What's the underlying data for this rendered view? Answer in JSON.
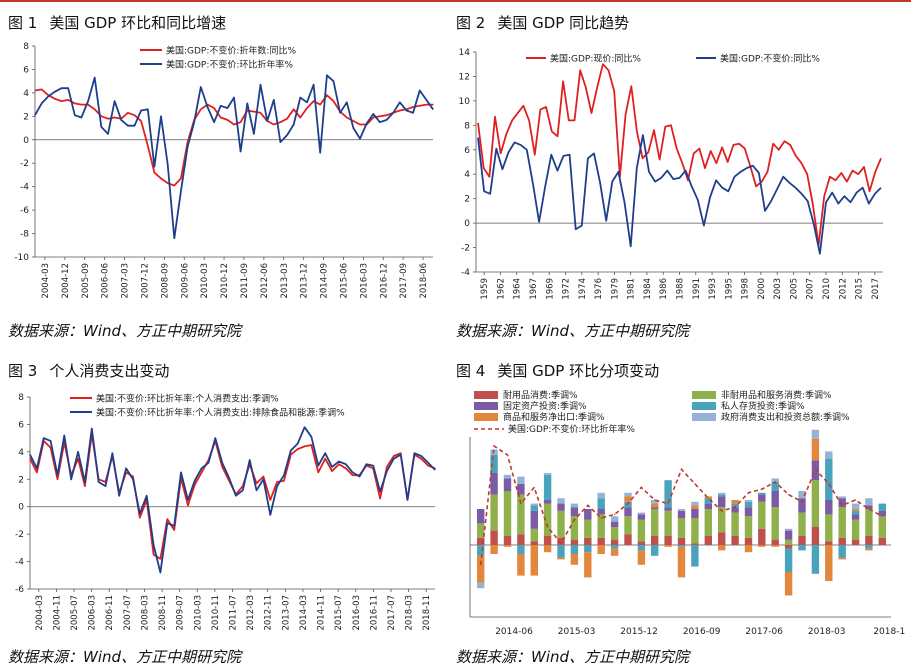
{
  "source_text": "数据来源：Wind、方正中期研究院",
  "charts": [
    {
      "fig_label": "图 1",
      "title": "美国 GDP 环比和同比增速",
      "chart_data": {
        "type": "line",
        "ylim": [
          -10,
          8
        ],
        "yticks": [
          -10,
          -8,
          -6,
          -4,
          -2,
          0,
          2,
          4,
          6,
          8
        ],
        "xlabels": [
          "2004-03",
          "2004-12",
          "2005-09",
          "2006-06",
          "2007-03",
          "2007-12",
          "2008-09",
          "2009-06",
          "2010-03",
          "2010-12",
          "2011-09",
          "2012-06",
          "2013-03",
          "2013-12",
          "2014-09",
          "2015-06",
          "2016-03",
          "2016-12",
          "2017-09",
          "2018-06"
        ],
        "grid": false,
        "legend_position": "top-center",
        "series": [
          {
            "name": "美国:GDP:不变价:折年数:同比%",
            "color": "#e02020",
            "values": [
              4.2,
              4.3,
              3.8,
              3.5,
              3.3,
              3.4,
              3.1,
              3.0,
              3.0,
              2.6,
              2.0,
              1.8,
              1.9,
              1.8,
              2.3,
              2.1,
              1.6,
              -0.5,
              -2.8,
              -3.3,
              -3.7,
              -3.9,
              -3.3,
              -0.2,
              1.7,
              2.6,
              3.0,
              2.7,
              1.9,
              1.7,
              1.3,
              1.5,
              2.5,
              2.4,
              2.3,
              1.6,
              1.3,
              1.5,
              1.8,
              2.6,
              1.9,
              2.7,
              3.3,
              3.0,
              3.8,
              3.3,
              2.4,
              1.9,
              1.6,
              1.3,
              1.3,
              1.9,
              2.0,
              2.1,
              2.3,
              2.5,
              2.6,
              2.8,
              2.9,
              3.0,
              3.0
            ]
          },
          {
            "name": "美国:GDP:不变价:环比折年率%",
            "color": "#1f3e8c",
            "values": [
              2.1,
              3.1,
              3.7,
              4.1,
              4.4,
              4.4,
              2.1,
              1.9,
              3.3,
              5.3,
              1.1,
              0.5,
              3.3,
              1.7,
              1.2,
              1.2,
              2.5,
              2.6,
              -2.3,
              2.0,
              -2.1,
              -8.4,
              -4.4,
              -0.6,
              1.5,
              4.5,
              2.8,
              1.5,
              2.9,
              2.7,
              3.6,
              -1.0,
              3.1,
              0.5,
              4.7,
              1.6,
              3.4,
              -0.2,
              0.4,
              1.3,
              3.6,
              3.2,
              4.7,
              -1.1,
              5.5,
              5.0,
              2.3,
              3.2,
              1.0,
              0.1,
              1.4,
              2.2,
              1.5,
              1.7,
              2.3,
              3.2,
              2.5,
              2.3,
              4.2,
              3.4,
              2.6
            ]
          }
        ]
      }
    },
    {
      "fig_label": "图 2",
      "title": "美国 GDP 同比趋势",
      "chart_data": {
        "type": "line",
        "ylim": [
          -4,
          14
        ],
        "yticks": [
          -4,
          -2,
          0,
          2,
          4,
          6,
          8,
          10,
          12,
          14
        ],
        "xlabels": [
          "1959",
          "1962",
          "1964",
          "1967",
          "1969",
          "1972",
          "1974",
          "1976",
          "1979",
          "1981",
          "1984",
          "1986",
          "1988",
          "1991",
          "1993",
          "1995",
          "1998",
          "2000",
          "2003",
          "2005",
          "2007",
          "2010",
          "2012",
          "2015",
          "2017"
        ],
        "grid": false,
        "legend_position": "top",
        "series": [
          {
            "name": "美国:GDP:现价:同比%",
            "color": "#e02020",
            "values": [
              8.2,
              4.5,
              3.8,
              8.7,
              5.7,
              7.3,
              8.4,
              9.0,
              9.6,
              8.4,
              5.6,
              9.3,
              9.5,
              7.5,
              7.1,
              11.6,
              8.4,
              8.4,
              12.5,
              11.1,
              9.0,
              11.1,
              13.0,
              12.5,
              10.8,
              3.8,
              8.9,
              11.2,
              7.5,
              5.3,
              5.8,
              7.6,
              5.2,
              7.9,
              8.0,
              6.1,
              4.9,
              3.5,
              5.7,
              6.1,
              4.5,
              5.9,
              4.9,
              6.2,
              5.0,
              6.4,
              6.5,
              6.1,
              4.6,
              3.0,
              3.4,
              4.2,
              6.5,
              6.0,
              6.7,
              6.4,
              5.5,
              4.9,
              4.0,
              1.5,
              -1.8,
              2.2,
              3.8,
              3.5,
              4.1,
              3.4,
              4.3,
              4.0,
              4.6,
              2.6,
              4.2,
              5.3
            ]
          },
          {
            "name": "美国:GDP:不变价:同比%",
            "color": "#1f3e8c",
            "values": [
              7.0,
              2.6,
              2.4,
              6.1,
              4.4,
              5.8,
              6.6,
              6.4,
              6.0,
              3.2,
              0.1,
              3.0,
              5.6,
              4.3,
              5.5,
              5.6,
              -0.5,
              -0.2,
              5.3,
              5.7,
              3.3,
              0.2,
              3.4,
              4.2,
              1.7,
              -1.9,
              4.5,
              7.2,
              4.2,
              3.4,
              3.7,
              4.3,
              3.6,
              3.7,
              4.3,
              3.0,
              1.9,
              -0.2,
              2.1,
              3.5,
              2.9,
              2.6,
              3.8,
              4.2,
              4.5,
              4.7,
              4.1,
              1.0,
              1.8,
              2.8,
              3.8,
              3.3,
              2.9,
              2.4,
              1.8,
              -0.1,
              -2.5,
              1.7,
              2.5,
              1.6,
              2.2,
              1.7,
              2.5,
              2.9,
              1.6,
              2.4,
              2.9
            ]
          }
        ]
      }
    },
    {
      "fig_label": "图 3",
      "title": "个人消费支出变动",
      "chart_data": {
        "type": "line",
        "ylim": [
          -6,
          8
        ],
        "yticks": [
          -6,
          -4,
          -2,
          0,
          2,
          4,
          6,
          8
        ],
        "xlabels": [
          "2004-03",
          "2004-11",
          "2005-07",
          "2006-03",
          "2006-11",
          "2007-07",
          "2008-03",
          "2008-11",
          "2009-07",
          "2010-03",
          "2010-11",
          "2011-07",
          "2012-03",
          "2012-11",
          "2013-07",
          "2014-03",
          "2014-11",
          "2015-07",
          "2016-03",
          "2016-11",
          "2017-07",
          "2018-03",
          "2018-11"
        ],
        "grid": false,
        "legend_position": "top",
        "series": [
          {
            "name": "美国:不变价:环比折年率:个人消费支出:季调%",
            "color": "#e02020",
            "values": [
              3.5,
              2.5,
              4.8,
              4.3,
              2.0,
              4.7,
              2.3,
              3.5,
              1.5,
              5.3,
              2.0,
              1.8,
              3.7,
              1.0,
              2.5,
              2.2,
              -0.8,
              0.5,
              -3.5,
              -3.8,
              -0.9,
              -1.7,
              2.1,
              0.1,
              1.6,
              2.5,
              3.4,
              4.8,
              2.9,
              1.9,
              0.9,
              1.5,
              3.1,
              1.7,
              2.2,
              0.5,
              1.8,
              1.9,
              3.8,
              4.2,
              4.4,
              4.5,
              2.5,
              3.5,
              2.6,
              3.1,
              2.8,
              2.3,
              2.3,
              3.0,
              2.8,
              0.6,
              2.9,
              3.7,
              3.9,
              0.5,
              3.8,
              3.5,
              3.0,
              2.8
            ]
          },
          {
            "name": "美国:不变价:环比折年率:个人消费支出:排除食品和能源:季调%",
            "color": "#1f3e8c",
            "values": [
              3.8,
              2.8,
              5.0,
              4.8,
              2.3,
              5.2,
              2.0,
              4.0,
              1.8,
              5.7,
              1.8,
              1.5,
              3.9,
              0.8,
              2.8,
              2.0,
              -0.5,
              0.8,
              -2.8,
              -4.8,
              -1.2,
              -1.4,
              2.5,
              0.5,
              1.9,
              2.8,
              3.2,
              5.0,
              3.2,
              2.1,
              0.8,
              1.2,
              3.4,
              1.2,
              2.0,
              -0.6,
              1.5,
              2.3,
              4.1,
              4.6,
              5.8,
              5.1,
              3.0,
              3.9,
              2.9,
              3.3,
              3.1,
              2.5,
              2.2,
              3.1,
              3.0,
              1.1,
              2.6,
              3.5,
              3.8,
              0.5,
              3.9,
              3.7,
              3.2,
              2.7
            ]
          }
        ]
      }
    },
    {
      "fig_label": "图 4",
      "title": "美国 GDP 环比分项变动",
      "chart_data": {
        "type": "bar",
        "stacked": true,
        "ylim": [
          -4,
          6
        ],
        "xlabels": [
          "2014-06",
          "2015-03",
          "2015-12",
          "2016-09",
          "2017-06",
          "2018-03",
          "2018-1"
        ],
        "grid": false,
        "legend_position": "top",
        "series": [
          {
            "name": "耐用品消费:季调%",
            "color": "#c0504d",
            "values": [
              0.4,
              0.8,
              0.5,
              0.6,
              0.2,
              0.5,
              0.4,
              0.3,
              0.4,
              0.4,
              0.3,
              0.6,
              0.2,
              0.5,
              0.5,
              0.4,
              0.1,
              0.5,
              0.7,
              0.5,
              0.4,
              0.9,
              0.3,
              -0.2,
              0.5,
              1.0,
              0.2,
              0.4,
              0.3,
              0.5,
              0.4
            ]
          },
          {
            "name": "非耐用品和服务消费:季调%",
            "color": "#8fb04b",
            "values": [
              0.8,
              2.0,
              2.5,
              2.2,
              0.7,
              1.8,
              1.5,
              1.3,
              1.0,
              1.3,
              0.7,
              1.0,
              1.2,
              1.5,
              1.4,
              1.1,
              1.4,
              1.5,
              1.4,
              1.3,
              1.2,
              1.5,
              1.8,
              0.3,
              1.3,
              2.6,
              1.5,
              1.7,
              1.1,
              1.5,
              1.2
            ]
          },
          {
            "name": "固定资产投资:季调%",
            "color": "#7b5ba6",
            "values": [
              0.8,
              1.2,
              0.7,
              0.6,
              1.0,
              0.2,
              0.4,
              0.5,
              0.6,
              0.3,
              0.3,
              0.5,
              0.3,
              0.1,
              0.2,
              0.4,
              0.5,
              0.3,
              0.6,
              0.3,
              0.5,
              0.4,
              0.9,
              0.5,
              0.8,
              1.1,
              0.8,
              0.5,
              0.3,
              0.2,
              0.3
            ]
          },
          {
            "name": "私人存货投资:季调%",
            "color": "#4aa3bd",
            "values": [
              -0.6,
              1.0,
              0.0,
              -0.5,
              0.3,
              1.4,
              -0.7,
              -0.5,
              -0.4,
              0.6,
              -0.2,
              0.3,
              -0.3,
              -0.6,
              1.5,
              -0.1,
              -1.2,
              0.3,
              0.1,
              0.2,
              0.3,
              0.1,
              0.5,
              -1.3,
              -0.3,
              -1.6,
              2.3,
              -0.7,
              0.2,
              -0.2,
              0.4
            ]
          },
          {
            "name": "商品和服务净出口:季调%",
            "color": "#e2873b",
            "values": [
              -1.5,
              -0.5,
              -0.1,
              -1.2,
              -1.7,
              -0.4,
              -0.1,
              -0.6,
              -1.4,
              -0.5,
              -0.4,
              0.3,
              -0.8,
              0.2,
              -0.1,
              -1.7,
              0.2,
              0.1,
              -0.3,
              0.2,
              -0.4,
              -0.1,
              -0.1,
              -1.3,
              0.0,
              1.2,
              -2.0,
              -0.1,
              0.1,
              -0.1,
              0.0
            ]
          },
          {
            "name": "政府消费支出和投资总额:季调%",
            "color": "#95b3d7",
            "values": [
              -0.3,
              0.3,
              0.2,
              0.4,
              0.1,
              0.1,
              0.3,
              0.2,
              0.0,
              0.3,
              0.3,
              0.2,
              0.1,
              0.2,
              0.0,
              0.1,
              0.2,
              0.0,
              0.1,
              0.0,
              0.1,
              0.0,
              0.2,
              0.1,
              0.4,
              0.5,
              0.4,
              0.1,
              0.3,
              0.4,
              0.0
            ]
          },
          {
            "name": "美国:GDP:不变价:环比折年率%",
            "color": "#c0392b",
            "kind": "line",
            "values": [
              -1.1,
              5.5,
              5.0,
              2.3,
              3.2,
              1.0,
              0.1,
              1.4,
              2.2,
              1.5,
              1.7,
              2.3,
              3.2,
              2.5,
              2.3,
              4.2,
              3.4,
              2.6,
              1.9,
              2.1,
              2.9,
              3.1,
              3.5,
              2.8,
              2.4,
              4.2,
              3.4,
              2.2,
              2.5,
              2.0,
              1.6
            ]
          }
        ]
      }
    }
  ]
}
